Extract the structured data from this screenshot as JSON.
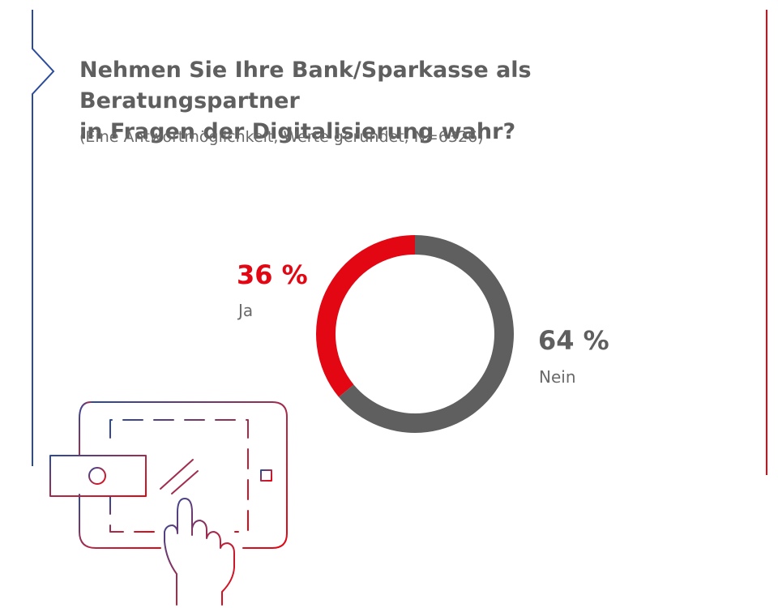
{
  "title": "Nehmen Sie Ihre Bank/Sparkasse als Beratungspartner\nin Fragen der Digitalisierung wahr?",
  "subtitle": "(Eine Antwortmöglichkeit, Werte gerundet, N=6326)",
  "colors": {
    "accent_red": "#e30613",
    "slice_gray": "#5f5f5f",
    "frame_blue": "#2b4a9b",
    "frame_red": "#e30613"
  },
  "chart_data": {
    "type": "pie",
    "categories": [
      "Ja",
      "Nein"
    ],
    "values": [
      36,
      64
    ],
    "labels": [
      "36 %",
      "64 %"
    ],
    "colors": [
      "#e30613",
      "#5f5f5f"
    ]
  }
}
